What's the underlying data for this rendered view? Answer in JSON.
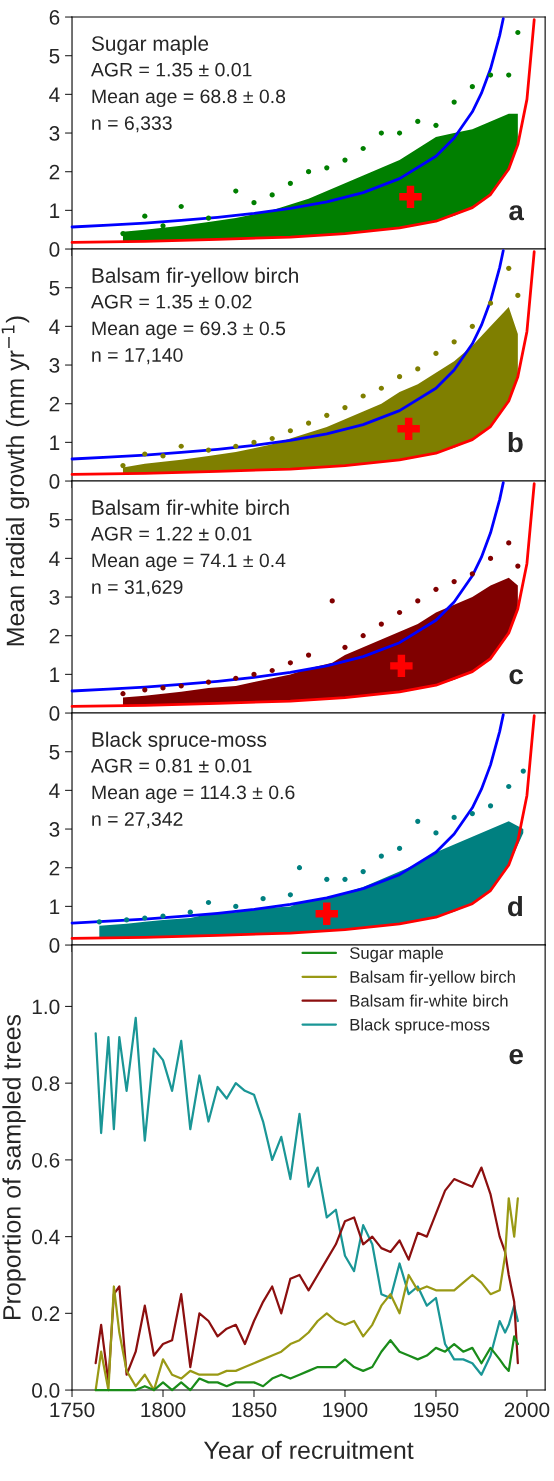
{
  "chart_data": [
    {
      "type": "scatter",
      "title": "Sugar maple",
      "annotations": [
        "AGR = 1.35 ± 0.01",
        "Mean age = 68.8 ± 0.8",
        "n = 6,333",
        "a"
      ],
      "ylabel": "Mean radial growth (mm yr$^{−1}$)",
      "xlim": [
        1750,
        2010
      ],
      "xticks": [
        1750,
        1800,
        1850,
        1900,
        1950,
        2000
      ],
      "ylim": [
        0,
        6
      ],
      "yticks": [
        0,
        1,
        2,
        3,
        4,
        5,
        6
      ],
      "tick_labels": "y",
      "series": [
        {
          "type": "scatter",
          "marker": "circle",
          "color": "#007f00",
          "x": [
            1778,
            1790,
            1800,
            1810,
            1825,
            1840,
            1850,
            1860,
            1870,
            1880,
            1890,
            1900,
            1910,
            1920,
            1930,
            1940,
            1950,
            1960,
            1970,
            1980,
            1990,
            1995
          ],
          "values": [
            0.4,
            0.85,
            0.6,
            1.1,
            0.8,
            1.5,
            1.2,
            1.4,
            1.7,
            2.0,
            2.1,
            2.3,
            2.6,
            3.0,
            3.0,
            3.3,
            3.2,
            3.8,
            4.2,
            4.5,
            4.5,
            5.6
          ],
          "upper": [
            0.45,
            0.5,
            0.55,
            0.6,
            0.7,
            0.8,
            0.9,
            1.0,
            1.15,
            1.3,
            1.5,
            1.7,
            1.9,
            2.1,
            2.3,
            2.6,
            2.9,
            3.0,
            3.1,
            3.3,
            3.5,
            3.5
          ],
          "lower": [
            0.19,
            0.2,
            0.21,
            0.22,
            0.24,
            0.26,
            0.28,
            0.29,
            0.31,
            0.34,
            0.37,
            0.4,
            0.44,
            0.49,
            0.55,
            0.62,
            0.72,
            0.86,
            1.07,
            1.41,
            2.07,
            2.7
          ]
        },
        {
          "type": "line",
          "color": "#0000ff",
          "x": [
            1750,
            1770,
            1790,
            1810,
            1830,
            1850,
            1870,
            1890,
            1910,
            1930,
            1950,
            1960,
            1970,
            1975,
            1980,
            1985,
            1987
          ],
          "values": [
            0.57,
            0.62,
            0.67,
            0.74,
            0.82,
            0.92,
            1.05,
            1.22,
            1.46,
            1.82,
            2.4,
            2.87,
            3.55,
            4.03,
            4.66,
            5.52,
            5.96
          ]
        },
        {
          "type": "line",
          "color": "#ff0000",
          "x": [
            1750,
            1790,
            1830,
            1870,
            1900,
            1930,
            1950,
            1970,
            1980,
            1990,
            1995,
            2000,
            2004
          ],
          "values": [
            0.17,
            0.2,
            0.25,
            0.31,
            0.4,
            0.55,
            0.72,
            1.07,
            1.41,
            2.07,
            2.7,
            3.87,
            5.93
          ]
        },
        {
          "type": "scatter",
          "marker": "cross",
          "color": "#ff0000",
          "x": [
            1936
          ],
          "values": [
            1.35
          ]
        }
      ]
    },
    {
      "type": "scatter",
      "title": "Balsam fir-yellow birch",
      "annotations": [
        "AGR = 1.35 ± 0.02",
        "Mean age = 69.3 ± 0.5",
        "n = 17,140",
        "b"
      ],
      "xlim": [
        1750,
        2010
      ],
      "xticks": [
        1750,
        1800,
        1850,
        1900,
        1950,
        2000
      ],
      "ylim": [
        0,
        6
      ],
      "yticks": [
        0,
        1,
        2,
        3,
        4,
        5
      ],
      "tick_labels": "y",
      "series": [
        {
          "type": "scatter",
          "marker": "circle",
          "color": "#7f7f00",
          "x": [
            1778,
            1790,
            1800,
            1810,
            1825,
            1840,
            1850,
            1860,
            1870,
            1880,
            1890,
            1900,
            1910,
            1920,
            1930,
            1940,
            1950,
            1960,
            1970,
            1980,
            1990,
            1995
          ],
          "values": [
            0.4,
            0.7,
            0.65,
            0.9,
            0.8,
            0.9,
            1.0,
            1.1,
            1.3,
            1.5,
            1.7,
            1.9,
            2.2,
            2.4,
            2.7,
            2.9,
            3.3,
            3.6,
            4.0,
            4.6,
            5.5,
            4.8
          ],
          "upper": [
            0.35,
            0.45,
            0.5,
            0.55,
            0.65,
            0.75,
            0.85,
            0.95,
            1.1,
            1.25,
            1.4,
            1.6,
            1.8,
            2.0,
            2.3,
            2.5,
            2.8,
            3.1,
            3.5,
            4.0,
            4.5,
            3.8
          ],
          "lower": [
            0.19,
            0.2,
            0.21,
            0.22,
            0.24,
            0.26,
            0.28,
            0.29,
            0.31,
            0.34,
            0.37,
            0.4,
            0.44,
            0.49,
            0.55,
            0.62,
            0.72,
            0.86,
            1.07,
            1.41,
            2.07,
            2.7
          ]
        },
        {
          "type": "line",
          "color": "#0000ff",
          "x": [
            1750,
            1770,
            1790,
            1810,
            1830,
            1850,
            1870,
            1890,
            1910,
            1930,
            1950,
            1960,
            1970,
            1975,
            1980,
            1985,
            1987
          ],
          "values": [
            0.57,
            0.62,
            0.67,
            0.74,
            0.82,
            0.92,
            1.05,
            1.22,
            1.46,
            1.82,
            2.4,
            2.87,
            3.55,
            4.03,
            4.66,
            5.52,
            5.96
          ]
        },
        {
          "type": "line",
          "color": "#ff0000",
          "x": [
            1750,
            1790,
            1830,
            1870,
            1900,
            1930,
            1950,
            1970,
            1980,
            1990,
            1995,
            2000,
            2004
          ],
          "values": [
            0.17,
            0.2,
            0.25,
            0.31,
            0.4,
            0.55,
            0.72,
            1.07,
            1.41,
            2.07,
            2.7,
            3.87,
            5.93
          ]
        },
        {
          "type": "scatter",
          "marker": "cross",
          "color": "#ff0000",
          "x": [
            1935
          ],
          "values": [
            1.35
          ]
        }
      ]
    },
    {
      "type": "scatter",
      "title": "Balsam fir-white birch",
      "annotations": [
        "AGR = 1.22 ± 0.01",
        "Mean age = 74.1 ± 0.4",
        "n = 31,629",
        "c"
      ],
      "xlim": [
        1750,
        2010
      ],
      "xticks": [
        1750,
        1800,
        1850,
        1900,
        1950,
        2000
      ],
      "ylim": [
        0,
        6
      ],
      "yticks": [
        0,
        1,
        2,
        3,
        4,
        5
      ],
      "tick_labels": "y",
      "series": [
        {
          "type": "scatter",
          "marker": "circle",
          "color": "#800000",
          "x": [
            1778,
            1790,
            1800,
            1810,
            1825,
            1840,
            1850,
            1860,
            1870,
            1880,
            1893,
            1900,
            1910,
            1920,
            1930,
            1940,
            1950,
            1960,
            1970,
            1980,
            1990,
            1995
          ],
          "values": [
            0.5,
            0.6,
            0.65,
            0.7,
            0.8,
            0.9,
            1.0,
            1.1,
            1.3,
            1.5,
            2.9,
            1.7,
            2.0,
            2.3,
            2.6,
            2.9,
            3.2,
            3.4,
            3.6,
            4.0,
            4.4,
            3.8
          ],
          "upper": [
            0.4,
            0.45,
            0.5,
            0.55,
            0.65,
            0.7,
            0.8,
            0.9,
            1.0,
            1.15,
            1.3,
            1.5,
            1.7,
            1.9,
            2.1,
            2.3,
            2.6,
            2.8,
            3.0,
            3.3,
            3.5,
            3.3
          ],
          "lower": [
            0.19,
            0.2,
            0.21,
            0.22,
            0.24,
            0.26,
            0.28,
            0.29,
            0.31,
            0.34,
            0.38,
            0.4,
            0.44,
            0.49,
            0.55,
            0.62,
            0.72,
            0.86,
            1.07,
            1.41,
            2.07,
            2.7
          ]
        },
        {
          "type": "line",
          "color": "#0000ff",
          "x": [
            1750,
            1770,
            1790,
            1810,
            1830,
            1850,
            1870,
            1890,
            1910,
            1930,
            1950,
            1960,
            1970,
            1975,
            1980,
            1985,
            1987
          ],
          "values": [
            0.57,
            0.62,
            0.67,
            0.74,
            0.82,
            0.92,
            1.05,
            1.22,
            1.46,
            1.82,
            2.4,
            2.87,
            3.55,
            4.03,
            4.66,
            5.52,
            5.96
          ]
        },
        {
          "type": "line",
          "color": "#ff0000",
          "x": [
            1750,
            1790,
            1830,
            1870,
            1900,
            1930,
            1950,
            1970,
            1980,
            1990,
            1995,
            2000,
            2004
          ],
          "values": [
            0.17,
            0.2,
            0.25,
            0.31,
            0.4,
            0.55,
            0.72,
            1.07,
            1.41,
            2.07,
            2.7,
            3.87,
            5.93
          ]
        },
        {
          "type": "scatter",
          "marker": "cross",
          "color": "#ff0000",
          "x": [
            1931
          ],
          "values": [
            1.22
          ]
        }
      ]
    },
    {
      "type": "scatter",
      "title": "Black spruce-moss",
      "annotations": [
        "AGR = 0.81 ± 0.01",
        "Mean age = 114.3 ± 0.6",
        "n = 27,342",
        "d"
      ],
      "xlim": [
        1750,
        2010
      ],
      "xticks": [
        1750,
        1800,
        1850,
        1900,
        1950,
        2000
      ],
      "ylim": [
        0,
        6
      ],
      "yticks": [
        0,
        1,
        2,
        3,
        4,
        5
      ],
      "tick_labels": "y",
      "series": [
        {
          "type": "scatter",
          "marker": "circle",
          "color": "#008080",
          "x": [
            1765,
            1780,
            1790,
            1800,
            1815,
            1825,
            1840,
            1855,
            1870,
            1875,
            1890,
            1900,
            1910,
            1920,
            1930,
            1940,
            1950,
            1960,
            1970,
            1980,
            1990,
            1998
          ],
          "values": [
            0.6,
            0.65,
            0.7,
            0.75,
            0.85,
            1.1,
            1.0,
            1.2,
            1.3,
            2.0,
            1.7,
            1.7,
            1.9,
            2.3,
            2.5,
            3.2,
            2.9,
            3.3,
            3.4,
            3.6,
            4.1,
            4.5
          ],
          "upper": [
            0.5,
            0.55,
            0.6,
            0.65,
            0.7,
            0.8,
            0.85,
            0.95,
            1.0,
            1.1,
            1.2,
            1.35,
            1.5,
            1.7,
            1.9,
            2.1,
            2.4,
            2.6,
            2.8,
            3.0,
            3.2,
            3.0
          ],
          "lower": [
            0.18,
            0.19,
            0.2,
            0.21,
            0.23,
            0.24,
            0.26,
            0.28,
            0.31,
            0.33,
            0.37,
            0.4,
            0.44,
            0.49,
            0.55,
            0.62,
            0.72,
            0.86,
            1.07,
            1.41,
            2.07,
            2.9
          ]
        },
        {
          "type": "line",
          "color": "#0000ff",
          "x": [
            1750,
            1770,
            1790,
            1810,
            1830,
            1850,
            1870,
            1890,
            1910,
            1930,
            1950,
            1960,
            1970,
            1975,
            1980,
            1985,
            1987
          ],
          "values": [
            0.57,
            0.62,
            0.67,
            0.74,
            0.82,
            0.92,
            1.05,
            1.22,
            1.46,
            1.82,
            2.4,
            2.87,
            3.55,
            4.03,
            4.66,
            5.52,
            5.96
          ]
        },
        {
          "type": "line",
          "color": "#ff0000",
          "x": [
            1750,
            1790,
            1830,
            1870,
            1900,
            1930,
            1950,
            1970,
            1980,
            1990,
            1995,
            2000,
            2004
          ],
          "values": [
            0.17,
            0.2,
            0.25,
            0.31,
            0.4,
            0.55,
            0.72,
            1.07,
            1.41,
            2.07,
            2.7,
            3.87,
            5.93
          ]
        },
        {
          "type": "scatter",
          "marker": "cross",
          "color": "#ff0000",
          "x": [
            1890
          ],
          "values": [
            0.81
          ]
        }
      ]
    },
    {
      "type": "line",
      "annotations": [
        "e"
      ],
      "xlabel": "Year of recruitment",
      "ylabel": "Proportion of sampled trees",
      "xlim": [
        1750,
        2010
      ],
      "xticks": [
        1750,
        1800,
        1850,
        1900,
        1950,
        2000
      ],
      "ylim": [
        0,
        1.16
      ],
      "yticks": [
        {
          "value": 0,
          "label": "0.0"
        },
        {
          "value": 0.2,
          "label": "0.2"
        },
        {
          "value": 0.4,
          "label": "0.4"
        },
        {
          "value": 0.6,
          "label": "0.6"
        },
        {
          "value": 0.8,
          "label": "0.8"
        },
        {
          "value": 1,
          "label": "1.0"
        }
      ],
      "legend": "top right",
      "line_style": "solid",
      "x": [
        1763,
        1766,
        1770,
        1773,
        1776,
        1780,
        1785,
        1790,
        1795,
        1800,
        1805,
        1810,
        1815,
        1820,
        1825,
        1830,
        1835,
        1840,
        1845,
        1850,
        1855,
        1860,
        1865,
        1870,
        1875,
        1880,
        1885,
        1890,
        1895,
        1900,
        1905,
        1910,
        1915,
        1920,
        1925,
        1930,
        1935,
        1940,
        1945,
        1950,
        1955,
        1960,
        1965,
        1970,
        1975,
        1980,
        1985,
        1988,
        1990,
        1993,
        1995
      ],
      "series": [
        {
          "name": "Sugar maple",
          "color": "#1a8c1a",
          "values": [
            0.0,
            0.0,
            0.0,
            0.0,
            0.0,
            0.0,
            0.0,
            0.01,
            0.0,
            0.02,
            0.0,
            0.02,
            0.0,
            0.03,
            0.02,
            0.02,
            0.01,
            0.02,
            0.02,
            0.02,
            0.01,
            0.03,
            0.04,
            0.03,
            0.04,
            0.05,
            0.06,
            0.06,
            0.06,
            0.08,
            0.06,
            0.05,
            0.06,
            0.1,
            0.13,
            0.1,
            0.09,
            0.08,
            0.09,
            0.11,
            0.1,
            0.12,
            0.1,
            0.11,
            0.07,
            0.11,
            0.08,
            0.06,
            0.05,
            0.14,
            0.12
          ]
        },
        {
          "name": "Balsam fir-yellow birch",
          "color": "#999915",
          "values": [
            0.0,
            0.1,
            0.0,
            0.27,
            0.15,
            0.05,
            0.01,
            0.04,
            0.0,
            0.08,
            0.04,
            0.03,
            0.05,
            0.04,
            0.04,
            0.04,
            0.05,
            0.05,
            0.06,
            0.07,
            0.08,
            0.09,
            0.1,
            0.12,
            0.13,
            0.15,
            0.18,
            0.2,
            0.18,
            0.17,
            0.18,
            0.14,
            0.17,
            0.22,
            0.25,
            0.2,
            0.3,
            0.26,
            0.27,
            0.26,
            0.26,
            0.26,
            0.28,
            0.3,
            0.28,
            0.25,
            0.26,
            0.35,
            0.5,
            0.4,
            0.5
          ]
        },
        {
          "name": "Balsam fir-white birch",
          "color": "#8c0f0f",
          "values": [
            0.07,
            0.17,
            0.02,
            0.25,
            0.27,
            0.04,
            0.1,
            0.22,
            0.09,
            0.12,
            0.13,
            0.25,
            0.06,
            0.2,
            0.18,
            0.14,
            0.16,
            0.17,
            0.12,
            0.18,
            0.23,
            0.27,
            0.2,
            0.29,
            0.3,
            0.26,
            0.3,
            0.34,
            0.38,
            0.44,
            0.45,
            0.38,
            0.4,
            0.37,
            0.36,
            0.39,
            0.34,
            0.41,
            0.4,
            0.46,
            0.52,
            0.55,
            0.54,
            0.53,
            0.58,
            0.51,
            0.4,
            0.36,
            0.3,
            0.23,
            0.07
          ]
        },
        {
          "name": "Black spruce-moss",
          "color": "#1a9696",
          "values": [
            0.93,
            0.67,
            0.92,
            0.68,
            0.92,
            0.78,
            0.97,
            0.65,
            0.89,
            0.86,
            0.78,
            0.91,
            0.68,
            0.82,
            0.7,
            0.79,
            0.76,
            0.8,
            0.78,
            0.77,
            0.7,
            0.6,
            0.66,
            0.55,
            0.72,
            0.53,
            0.58,
            0.45,
            0.47,
            0.35,
            0.31,
            0.43,
            0.38,
            0.25,
            0.24,
            0.33,
            0.25,
            0.27,
            0.22,
            0.24,
            0.12,
            0.08,
            0.08,
            0.07,
            0.04,
            0.09,
            0.18,
            0.15,
            0.17,
            0.22,
            0.18
          ]
        }
      ]
    }
  ]
}
